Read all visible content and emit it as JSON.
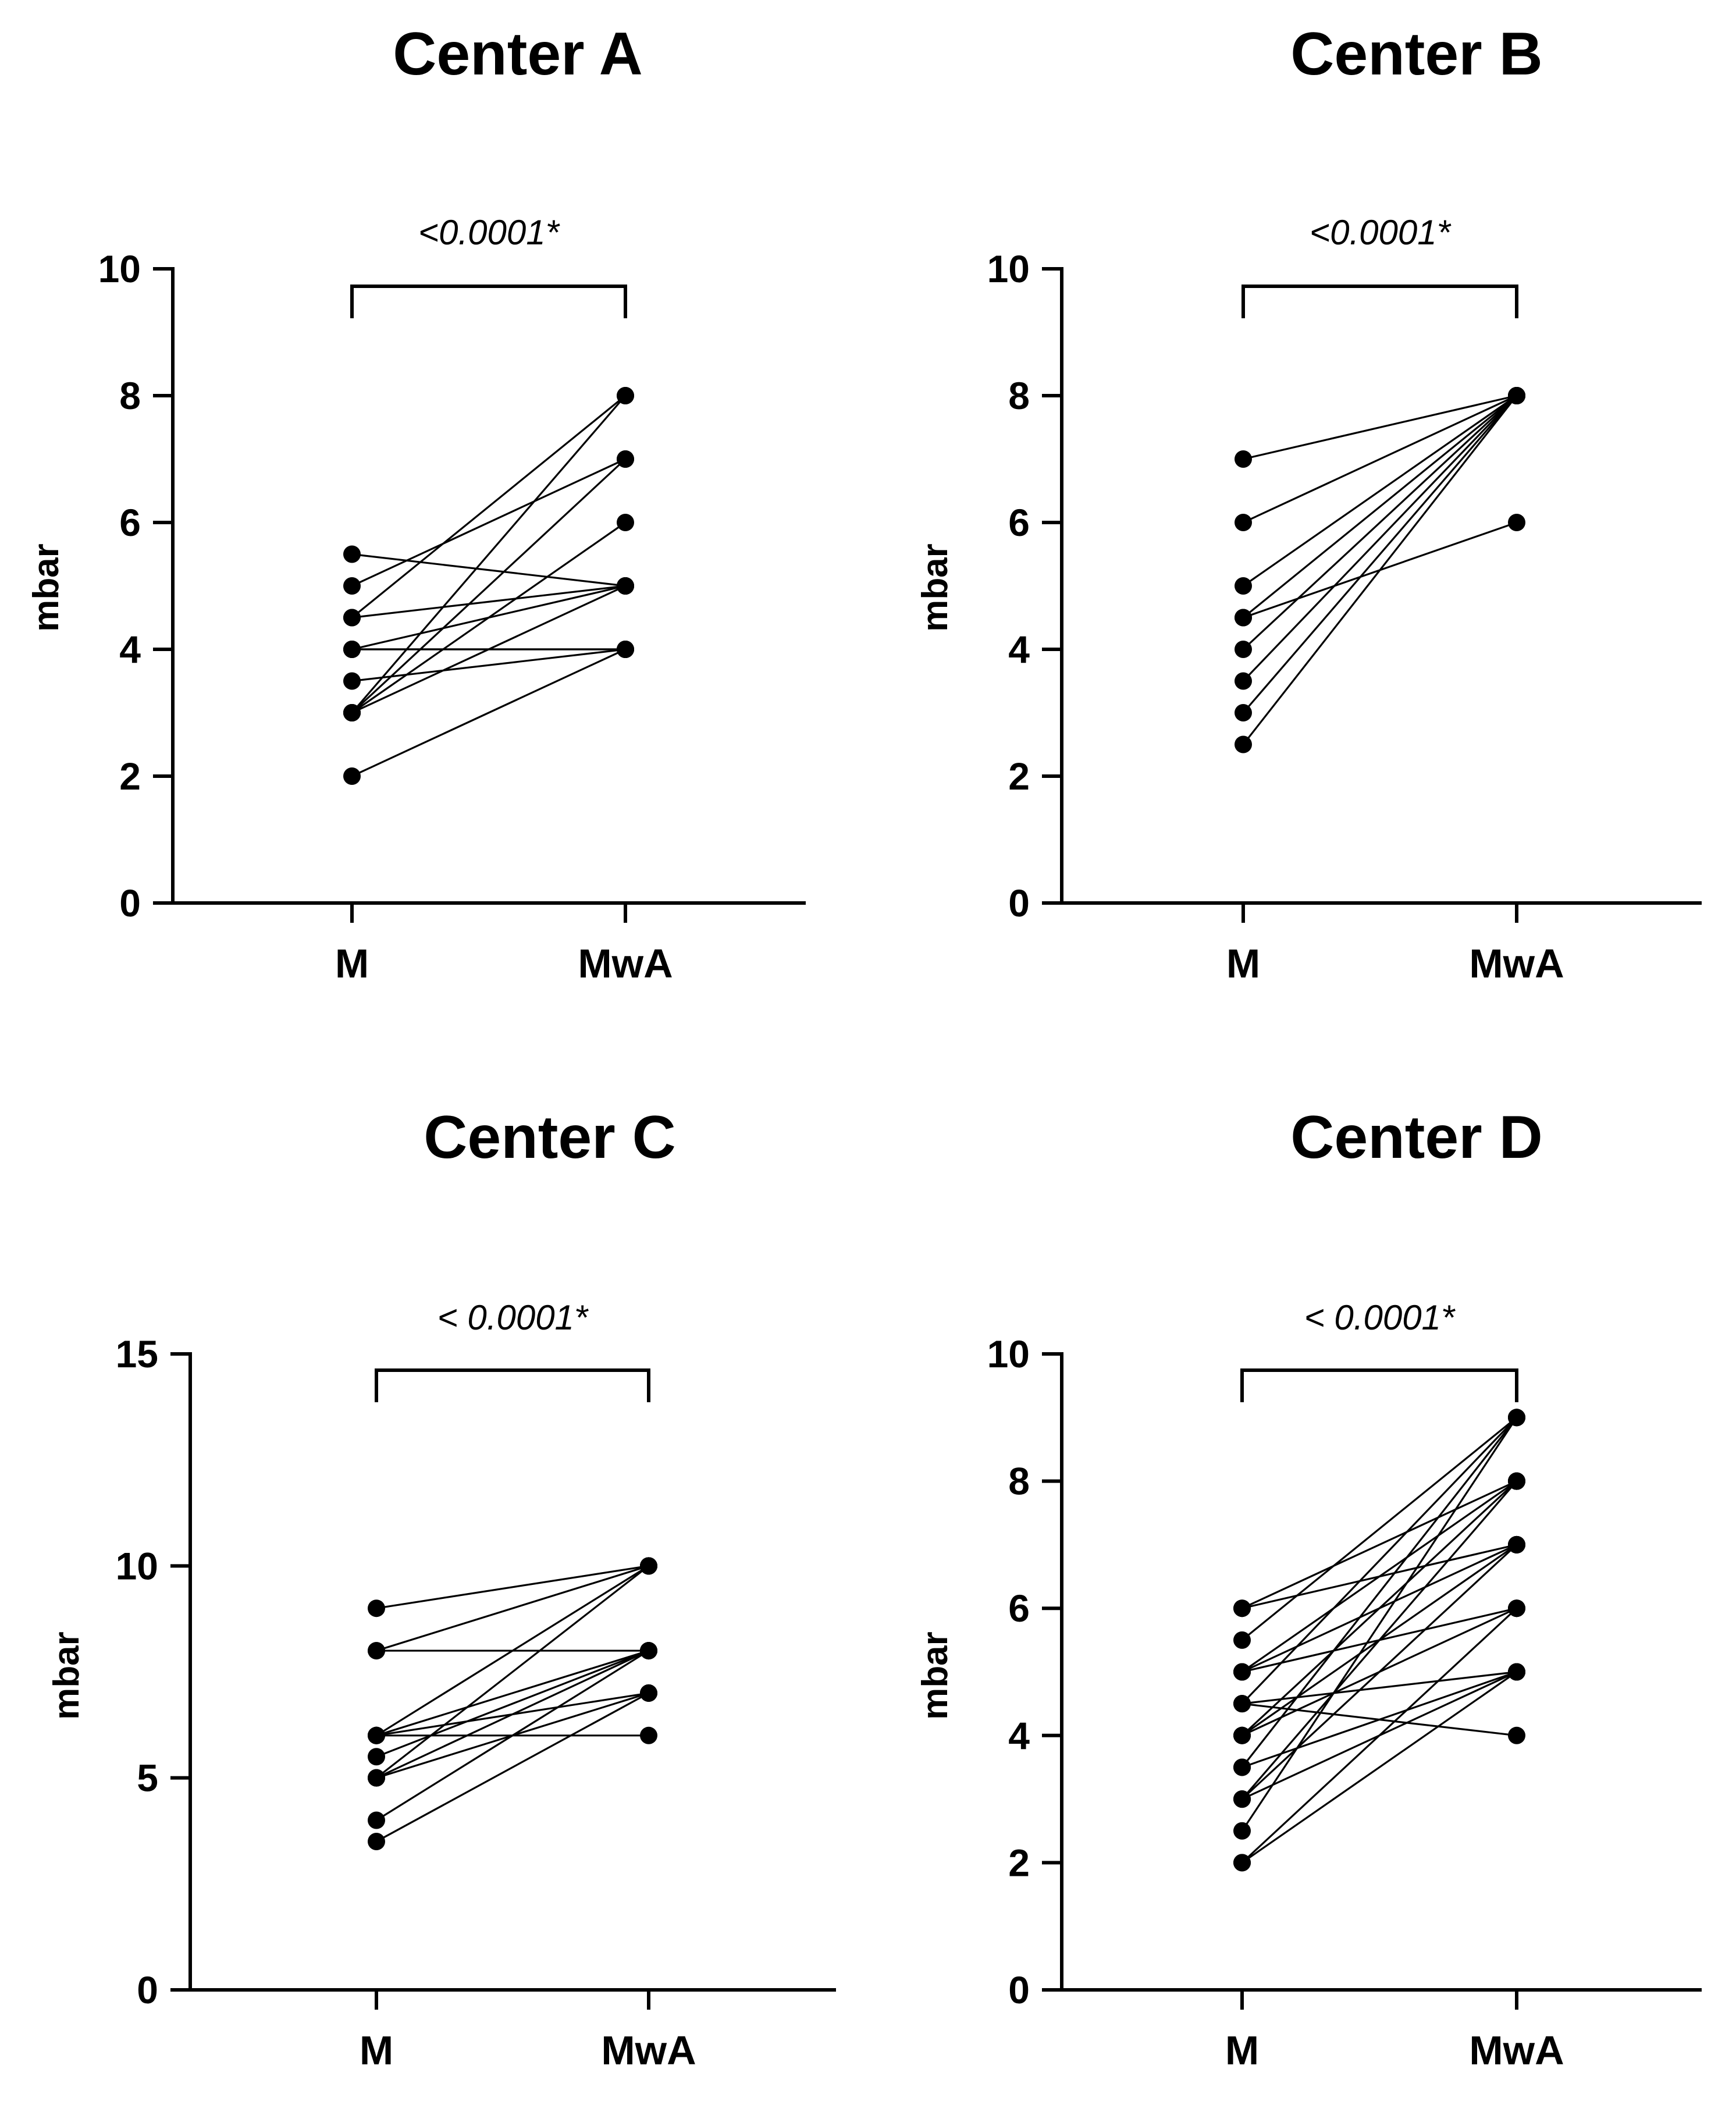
{
  "chart_data": [
    {
      "type": "scatter",
      "subtype": "paired-dot",
      "title": "Center A",
      "ylabel": "mbar",
      "categories": [
        "M",
        "MwA"
      ],
      "ylim": [
        0,
        10
      ],
      "yticks": [
        0,
        2,
        4,
        6,
        8,
        10
      ],
      "significance": "<0.0001*",
      "pairs": [
        [
          5.5,
          5
        ],
        [
          5,
          7
        ],
        [
          4.5,
          5
        ],
        [
          4.5,
          8
        ],
        [
          4,
          5
        ],
        [
          4,
          4
        ],
        [
          4,
          4
        ],
        [
          3.5,
          4
        ],
        [
          3,
          8
        ],
        [
          3,
          7
        ],
        [
          3,
          6
        ],
        [
          3,
          5
        ],
        [
          2,
          4
        ]
      ]
    },
    {
      "type": "scatter",
      "subtype": "paired-dot",
      "title": "Center B",
      "ylabel": "mbar",
      "categories": [
        "M",
        "MwA"
      ],
      "ylim": [
        0,
        10
      ],
      "yticks": [
        0,
        2,
        4,
        6,
        8,
        10
      ],
      "significance": "<0.0001*",
      "pairs": [
        [
          7,
          8
        ],
        [
          6,
          8
        ],
        [
          5,
          8
        ],
        [
          4.5,
          8
        ],
        [
          4.5,
          6
        ],
        [
          4,
          8
        ],
        [
          3.5,
          8
        ],
        [
          3,
          8
        ],
        [
          2.5,
          8
        ]
      ]
    },
    {
      "type": "scatter",
      "subtype": "paired-dot",
      "title": "Center C",
      "ylabel": "mbar",
      "categories": [
        "M",
        "MwA"
      ],
      "ylim": [
        0,
        15
      ],
      "yticks": [
        0,
        5,
        10,
        15
      ],
      "significance": "< 0.0001*",
      "pairs": [
        [
          9,
          10
        ],
        [
          8,
          8
        ],
        [
          8,
          10
        ],
        [
          6,
          10
        ],
        [
          6,
          8
        ],
        [
          6,
          7
        ],
        [
          6,
          6
        ],
        [
          5.5,
          8
        ],
        [
          5,
          10
        ],
        [
          5,
          8
        ],
        [
          5,
          7
        ],
        [
          4,
          8
        ],
        [
          3.5,
          7
        ]
      ]
    },
    {
      "type": "scatter",
      "subtype": "paired-dot",
      "title": "Center D",
      "ylabel": "mbar",
      "categories": [
        "M",
        "MwA"
      ],
      "ylim": [
        0,
        10
      ],
      "yticks": [
        0,
        2,
        4,
        6,
        8,
        10
      ],
      "significance": "< 0.0001*",
      "pairs": [
        [
          6,
          7
        ],
        [
          6,
          8
        ],
        [
          5.5,
          9
        ],
        [
          5,
          7
        ],
        [
          5,
          8
        ],
        [
          5,
          6
        ],
        [
          4.5,
          9
        ],
        [
          4.5,
          5
        ],
        [
          4.5,
          4
        ],
        [
          4,
          8
        ],
        [
          4,
          7
        ],
        [
          4,
          6
        ],
        [
          3.5,
          9
        ],
        [
          3.5,
          5
        ],
        [
          3,
          8
        ],
        [
          3,
          7
        ],
        [
          3,
          5
        ],
        [
          2.5,
          9
        ],
        [
          2,
          6
        ],
        [
          2,
          5
        ]
      ]
    }
  ]
}
